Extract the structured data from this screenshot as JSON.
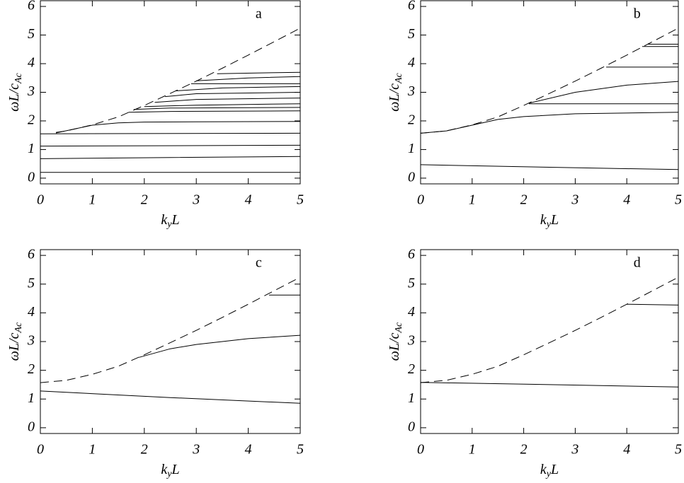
{
  "chart_data": [
    {
      "type": "line",
      "label": "a",
      "ylabel": "ωL/c",
      "ylabel_sub": "Ac",
      "xlabel": "k",
      "xlabel_sub": "y",
      "xlabel_end": "L",
      "xlim": [
        0,
        5
      ],
      "ylim": [
        -0.2,
        6.2
      ],
      "xticks": [
        0,
        1,
        2,
        3,
        4,
        5
      ],
      "yticks": [
        0,
        1,
        2,
        3,
        4,
        5,
        6
      ],
      "series": [
        {
          "color": "#000000",
          "dashed": true,
          "x": [
            0.3,
            0.5,
            1,
            1.5,
            2,
            2.5,
            3,
            3.5,
            4,
            4.5,
            5
          ],
          "values": [
            1.6,
            1.65,
            1.86,
            2.14,
            2.54,
            2.96,
            3.39,
            3.84,
            4.3,
            4.77,
            5.24
          ]
        },
        {
          "color": "#000000",
          "x": [
            0,
            5
          ],
          "values": [
            0.2,
            0.2
          ]
        },
        {
          "color": "#000000",
          "x": [
            0,
            2.5,
            5
          ],
          "values": [
            0.68,
            0.72,
            0.76
          ]
        },
        {
          "color": "#000000",
          "x": [
            0,
            5
          ],
          "values": [
            1.12,
            1.15
          ]
        },
        {
          "color": "#000000",
          "x": [
            0,
            5
          ],
          "values": [
            1.55,
            1.57
          ]
        },
        {
          "color": "#000000",
          "x": [
            0.3,
            1,
            1.5,
            2,
            3,
            5
          ],
          "values": [
            1.58,
            1.85,
            1.93,
            1.96,
            1.97,
            1.98
          ]
        },
        {
          "color": "#000000",
          "x": [
            1.7,
            2.5,
            5
          ],
          "values": [
            2.3,
            2.33,
            2.35
          ]
        },
        {
          "color": "#000000",
          "x": [
            1.8,
            2.5,
            5
          ],
          "values": [
            2.4,
            2.45,
            2.47
          ]
        },
        {
          "color": "#000000",
          "x": [
            2,
            3,
            5
          ],
          "values": [
            2.5,
            2.55,
            2.6
          ]
        },
        {
          "color": "#000000",
          "x": [
            2.2,
            3,
            5
          ],
          "values": [
            2.65,
            2.75,
            2.8
          ]
        },
        {
          "color": "#000000",
          "x": [
            2.4,
            3,
            5
          ],
          "values": [
            2.85,
            2.95,
            3.0
          ]
        },
        {
          "color": "#000000",
          "x": [
            2.6,
            3.5,
            5
          ],
          "values": [
            3.05,
            3.15,
            3.2
          ]
        },
        {
          "color": "#000000",
          "x": [
            2.9,
            4,
            5
          ],
          "values": [
            3.3,
            3.3,
            3.3
          ]
        },
        {
          "color": "#000000",
          "x": [
            3.0,
            4,
            5
          ],
          "values": [
            3.4,
            3.5,
            3.55
          ]
        },
        {
          "color": "#000000",
          "x": [
            3.4,
            5
          ],
          "values": [
            3.65,
            3.7
          ]
        }
      ]
    },
    {
      "type": "line",
      "label": "b",
      "ylabel": "ωL/c",
      "ylabel_sub": "Ac",
      "xlabel": "k",
      "xlabel_sub": "y",
      "xlabel_end": "L",
      "xlim": [
        0,
        5
      ],
      "ylim": [
        -0.2,
        6.2
      ],
      "xticks": [
        0,
        1,
        2,
        3,
        4,
        5
      ],
      "yticks": [
        0,
        1,
        2,
        3,
        4,
        5,
        6
      ],
      "series": [
        {
          "color": "#000000",
          "dashed": true,
          "x": [
            0,
            0.5,
            1,
            1.5,
            2,
            2.5,
            3,
            3.5,
            4,
            4.5,
            5
          ],
          "values": [
            1.57,
            1.65,
            1.86,
            2.14,
            2.54,
            2.96,
            3.39,
            3.84,
            4.3,
            4.77,
            5.24
          ]
        },
        {
          "color": "#000000",
          "x": [
            0,
            2.5,
            5
          ],
          "values": [
            0.47,
            0.38,
            0.3
          ]
        },
        {
          "color": "#000000",
          "x": [
            0,
            0.5,
            1,
            1.5,
            2,
            3,
            5
          ],
          "values": [
            1.57,
            1.65,
            1.85,
            2.05,
            2.15,
            2.25,
            2.3
          ]
        },
        {
          "color": "#000000",
          "x": [
            2.1,
            5
          ],
          "values": [
            2.6,
            2.6
          ]
        },
        {
          "color": "#000000",
          "x": [
            2.1,
            3,
            4,
            5
          ],
          "values": [
            2.62,
            3.0,
            3.25,
            3.38
          ]
        },
        {
          "color": "#000000",
          "x": [
            3.6,
            5
          ],
          "values": [
            3.88,
            3.88
          ]
        },
        {
          "color": "#000000",
          "x": [
            4.3,
            5
          ],
          "values": [
            4.6,
            4.6
          ]
        },
        {
          "color": "#000000",
          "x": [
            4.4,
            5
          ],
          "values": [
            4.68,
            4.68
          ]
        }
      ]
    },
    {
      "type": "line",
      "label": "c",
      "ylabel": "ωL/c",
      "ylabel_sub": "Ac",
      "xlabel": "k",
      "xlabel_sub": "y",
      "xlabel_end": "L",
      "xlim": [
        0,
        5
      ],
      "ylim": [
        -0.2,
        6.2
      ],
      "xticks": [
        0,
        1,
        2,
        3,
        4,
        5
      ],
      "yticks": [
        0,
        1,
        2,
        3,
        4,
        5,
        6
      ],
      "series": [
        {
          "color": "#000000",
          "dashed": true,
          "x": [
            0,
            0.5,
            1,
            1.5,
            2,
            2.5,
            3,
            3.5,
            4,
            4.5,
            5
          ],
          "values": [
            1.57,
            1.65,
            1.86,
            2.14,
            2.54,
            2.96,
            3.39,
            3.84,
            4.3,
            4.77,
            5.24
          ]
        },
        {
          "color": "#000000",
          "x": [
            0,
            2.5,
            5
          ],
          "values": [
            1.28,
            1.05,
            0.85
          ]
        },
        {
          "color": "#000000",
          "x": [
            1.9,
            2.5,
            3,
            4,
            5
          ],
          "values": [
            2.45,
            2.75,
            2.9,
            3.1,
            3.22
          ]
        },
        {
          "color": "#000000",
          "x": [
            4.4,
            5
          ],
          "values": [
            4.62,
            4.62
          ]
        }
      ]
    },
    {
      "type": "line",
      "label": "d",
      "ylabel": "ωL/c",
      "ylabel_sub": "Ac",
      "xlabel": "k",
      "xlabel_sub": "y",
      "xlabel_end": "L",
      "xlim": [
        0,
        5
      ],
      "ylim": [
        -0.2,
        6.2
      ],
      "xticks": [
        0,
        1,
        2,
        3,
        4,
        5
      ],
      "yticks": [
        0,
        1,
        2,
        3,
        4,
        5,
        6
      ],
      "series": [
        {
          "color": "#000000",
          "dashed": true,
          "x": [
            0,
            0.5,
            1,
            1.5,
            2,
            2.5,
            3,
            3.5,
            4,
            4.5,
            5
          ],
          "values": [
            1.57,
            1.65,
            1.86,
            2.14,
            2.54,
            2.96,
            3.39,
            3.84,
            4.3,
            4.77,
            5.24
          ]
        },
        {
          "color": "#000000",
          "x": [
            0,
            2.5,
            5
          ],
          "values": [
            1.58,
            1.5,
            1.42
          ]
        },
        {
          "color": "#000000",
          "x": [
            4,
            5
          ],
          "values": [
            4.3,
            4.27
          ]
        }
      ]
    }
  ]
}
